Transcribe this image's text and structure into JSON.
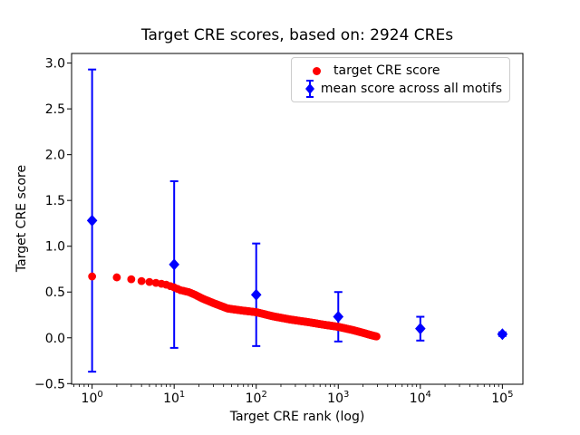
{
  "chart_data": {
    "type": "scatter",
    "title": "Target CRE scores, based on: 2924 CREs",
    "xlabel": "Target CRE rank (log)",
    "ylabel": "Target CRE score",
    "x_scale": "log",
    "xlim_log10": [
      -0.25,
      5.25
    ],
    "ylim": [
      -0.507,
      3.105
    ],
    "x_tick_exponents": [
      0,
      1,
      2,
      3,
      4,
      5
    ],
    "y_ticks": [
      -0.5,
      0.0,
      0.5,
      1.0,
      1.5,
      2.0,
      2.5,
      3.0
    ],
    "grid": false,
    "background": "#ffffff",
    "axis_color": "#000000",
    "legend_position": "inside upper right",
    "series": [
      {
        "name": "target CRE score",
        "marker": "circle",
        "color": "#ff0000",
        "n_points": 2924,
        "points_rank_score": [
          [
            1,
            0.67
          ],
          [
            2,
            0.66
          ],
          [
            3,
            0.64
          ],
          [
            4,
            0.62
          ],
          [
            5,
            0.61
          ],
          [
            6,
            0.6
          ],
          [
            7,
            0.59
          ],
          [
            8,
            0.58
          ],
          [
            10,
            0.55
          ],
          [
            12,
            0.52
          ],
          [
            15,
            0.5
          ],
          [
            18,
            0.47
          ],
          [
            22,
            0.43
          ],
          [
            30,
            0.38
          ],
          [
            45,
            0.32
          ],
          [
            65,
            0.3
          ],
          [
            100,
            0.28
          ],
          [
            160,
            0.235
          ],
          [
            260,
            0.2
          ],
          [
            440,
            0.17
          ],
          [
            650,
            0.145
          ],
          [
            1000,
            0.12
          ],
          [
            1500,
            0.085
          ],
          [
            2000,
            0.055
          ],
          [
            2500,
            0.03
          ],
          [
            2924,
            0.015
          ]
        ]
      },
      {
        "name": "mean score across all motifs",
        "marker": "diamond",
        "color": "#0000ff",
        "x": [
          1,
          10,
          100,
          1000,
          10000,
          100000
        ],
        "y": [
          1.28,
          0.8,
          0.47,
          0.23,
          0.1,
          0.04
        ],
        "yerr": [
          1.65,
          0.91,
          0.56,
          0.27,
          0.13,
          0.02
        ]
      }
    ]
  }
}
